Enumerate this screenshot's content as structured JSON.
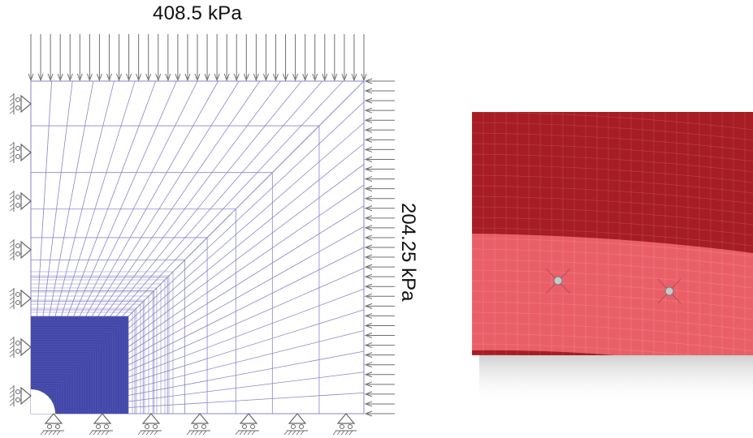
{
  "left_figure": {
    "top_load_label": "408.5 kPa",
    "side_load_label": "204.25 kPa"
  },
  "colors": {
    "mesh_line": "#8a86c8",
    "mesh_dense": "#3a3f9e",
    "arrow": "#6f6f6f",
    "support": "#666666",
    "upper_region": "#a81c24",
    "lower_region": "#ea5f67",
    "shadow": "#cfcfcf"
  },
  "icons": {
    "roller_support": "roller-support-icon",
    "load_arrow": "load-arrow-icon",
    "node_marker": "node-marker-icon"
  }
}
